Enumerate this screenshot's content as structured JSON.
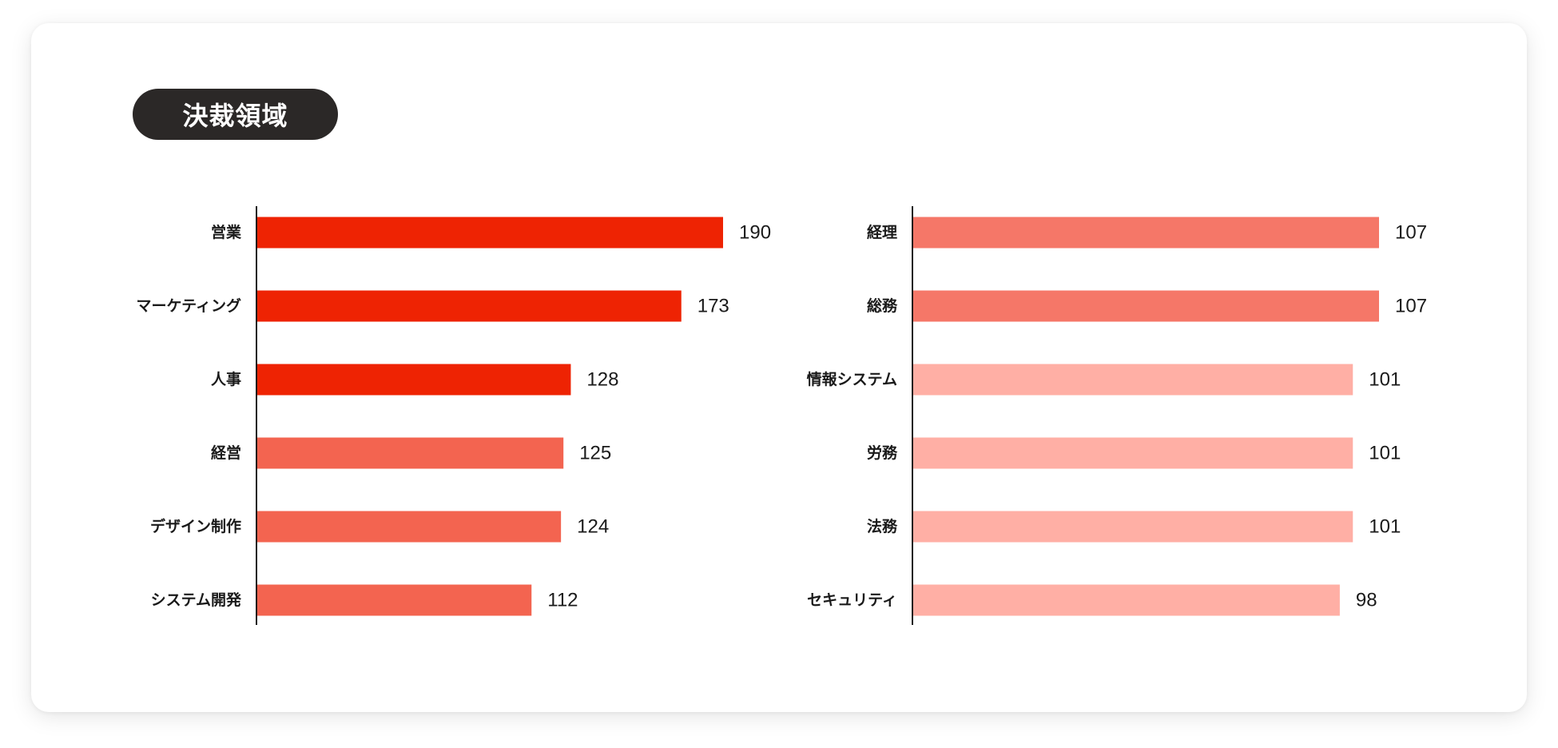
{
  "title": "決裁領域",
  "chart_data": [
    {
      "type": "bar",
      "orientation": "horizontal",
      "categories": [
        "営業",
        "マーケティング",
        "人事",
        "経営",
        "デザイン制作",
        "システム開発"
      ],
      "values": [
        190,
        173,
        128,
        125,
        124,
        112
      ],
      "colors": [
        "#ee2303",
        "#ee2303",
        "#ee2303",
        "#f36450",
        "#f36450",
        "#f36450"
      ],
      "xlim": [
        0,
        190
      ]
    },
    {
      "type": "bar",
      "orientation": "horizontal",
      "categories": [
        "経理",
        "総務",
        "情報システム",
        "労務",
        "法務",
        "セキュリティ"
      ],
      "values": [
        107,
        107,
        101,
        101,
        101,
        98
      ],
      "colors": [
        "#f57768",
        "#f57768",
        "#ffafa5",
        "#ffafa5",
        "#ffafa5",
        "#ffafa5"
      ],
      "xlim": [
        0,
        107
      ]
    }
  ]
}
